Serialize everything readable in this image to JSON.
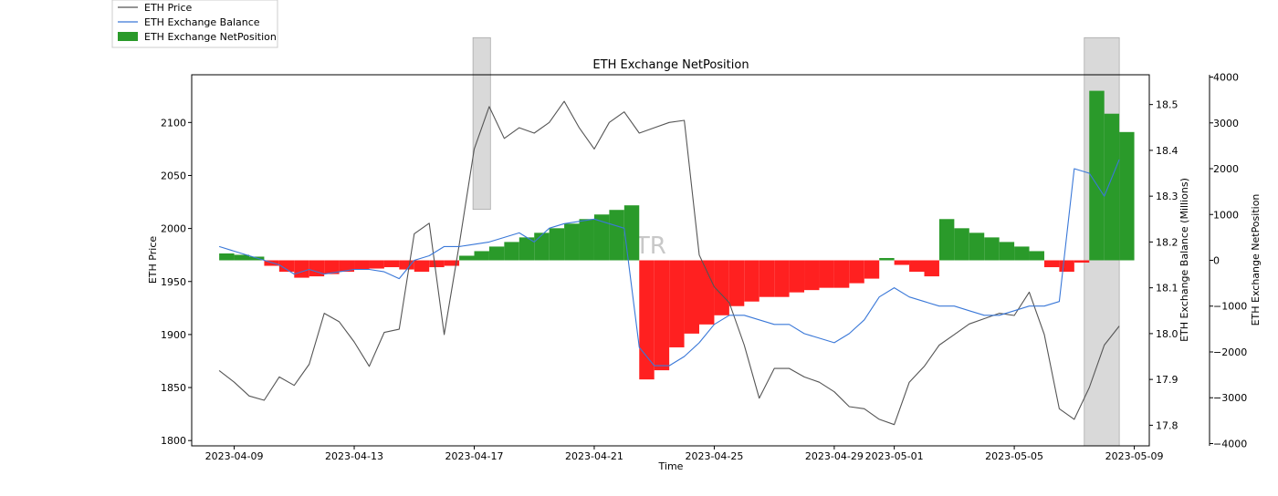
{
  "chart_data": {
    "type": "line",
    "title": "ETH Exchange NetPosition",
    "xlabel": "Time",
    "watermark": "WTR",
    "x_ticks": [
      "2023-04-09",
      "2023-04-13",
      "2023-04-17",
      "2023-04-21",
      "2023-04-25",
      "2023-04-29",
      "2023-05-01",
      "2023-05-05",
      "2023-05-09"
    ],
    "xlim": [
      "2023-04-07T14:00",
      "2023-05-09T12:00"
    ],
    "legend": {
      "position": "top-left",
      "entries": [
        {
          "label": "ETH Price",
          "color": "#555555",
          "kind": "line"
        },
        {
          "label": "ETH Exchange Balance",
          "color": "#3a78d8",
          "kind": "line"
        },
        {
          "label": "ETH Exchange NetPosition",
          "color": "#2a9a2a",
          "kind": "patch"
        }
      ]
    },
    "axes": {
      "price": {
        "label": "ETH Price",
        "side": "left",
        "ylim": [
          1795,
          2145
        ],
        "ticks": [
          1800,
          1850,
          1900,
          1950,
          2000,
          2050,
          2100
        ]
      },
      "balance": {
        "label": "ETH Exchange Balance (Millions)",
        "side": "right",
        "ylim": [
          17.755,
          18.565
        ],
        "ticks": [
          "17.8",
          "17.9",
          "18.0",
          "18.1",
          "18.2",
          "18.3",
          "18.4",
          "18.5"
        ]
      },
      "netposition": {
        "label": "ETH Exchange NetPosition",
        "side": "right-outer",
        "ylim": [
          -4050,
          4050
        ],
        "ticks": [
          "−4000",
          "−3000",
          "−2000",
          "−1000",
          "0",
          "1000",
          "2000",
          "3000",
          "4000"
        ]
      }
    },
    "shaded_regions": [
      {
        "start": "2023-04-16T23:00",
        "end": "2023-04-17T13:00",
        "price_range": [
          2018,
          2180
        ],
        "color": "#d9d9d9"
      },
      {
        "start": "2023-05-07T08:00",
        "end": "2023-05-08T12:00",
        "price_range": [
          1795,
          2180
        ],
        "color": "#d9d9d9"
      }
    ],
    "x_days": [
      0.0,
      0.5,
      1.0,
      1.5,
      2.0,
      2.5,
      3.0,
      3.5,
      4.0,
      4.5,
      5.0,
      5.5,
      6.0,
      6.5,
      7.0,
      7.5,
      8.0,
      8.5,
      9.0,
      9.5,
      10.0,
      10.5,
      11.0,
      11.5,
      12.0,
      12.5,
      13.0,
      13.5,
      14.0,
      14.5,
      15.0,
      15.5,
      16.0,
      16.5,
      17.0,
      17.5,
      18.0,
      18.5,
      19.0,
      19.5,
      20.0,
      20.5,
      21.0,
      21.5,
      22.0,
      22.5,
      23.0,
      23.5,
      24.0,
      24.5,
      25.0,
      25.5,
      26.0,
      26.5,
      27.0,
      27.5,
      28.0,
      28.5,
      29.0,
      29.5,
      30.0
    ],
    "series": [
      {
        "name": "ETH Price",
        "axis": "price",
        "color": "#555555",
        "values": [
          1866,
          1855,
          1842,
          1838,
          1860,
          1852,
          1872,
          1920,
          1912,
          1893,
          1870,
          1902,
          1905,
          1995,
          2005,
          1900,
          1985,
          2075,
          2115,
          2085,
          2095,
          2090,
          2100,
          2120,
          2095,
          2075,
          2100,
          2110,
          2090,
          2095,
          2100,
          2102,
          1975,
          1945,
          1930,
          1890,
          1840,
          1868,
          1868,
          1860,
          1855,
          1846,
          1832,
          1830,
          1820,
          1815,
          1855,
          1870,
          1890,
          1900,
          1910,
          1915,
          1920,
          1918,
          1940,
          1900,
          1830,
          1820,
          1850,
          1890,
          1908
        ]
      },
      {
        "name": "ETH Exchange Balance",
        "axis": "balance",
        "color": "#3a78d8",
        "values": [
          18.19,
          18.18,
          18.17,
          18.16,
          18.15,
          18.13,
          18.14,
          18.13,
          18.135,
          18.14,
          18.14,
          18.135,
          18.12,
          18.16,
          18.17,
          18.19,
          18.19,
          18.195,
          18.2,
          18.21,
          18.22,
          18.2,
          18.23,
          18.24,
          18.245,
          18.25,
          18.24,
          18.23,
          17.97,
          17.93,
          17.93,
          17.95,
          17.98,
          18.02,
          18.04,
          18.04,
          18.03,
          18.02,
          18.02,
          18.0,
          17.99,
          17.98,
          18.0,
          18.03,
          18.08,
          18.1,
          18.08,
          18.07,
          18.06,
          18.06,
          18.05,
          18.04,
          18.04,
          18.05,
          18.06,
          18.06,
          18.07,
          18.36,
          18.35,
          18.3,
          18.38
        ]
      },
      {
        "name": "ETH Exchange NetPosition",
        "axis": "netposition",
        "color": "#2a9a2a",
        "values": [
          150,
          120,
          80,
          -120,
          -250,
          -380,
          -350,
          -300,
          -250,
          -200,
          -180,
          -150,
          -200,
          -250,
          -150,
          -120,
          100,
          200,
          300,
          400,
          500,
          600,
          700,
          800,
          900,
          1000,
          1100,
          1200,
          -2600,
          -2400,
          -1900,
          -1600,
          -1400,
          -1200,
          -1000,
          -900,
          -800,
          -800,
          -700,
          -650,
          -600,
          -600,
          -500,
          -400,
          50,
          -100,
          -250,
          -350,
          900,
          700,
          600,
          500,
          400,
          300,
          200,
          -150,
          -250,
          -50,
          3700,
          3200,
          2800
        ]
      }
    ]
  }
}
